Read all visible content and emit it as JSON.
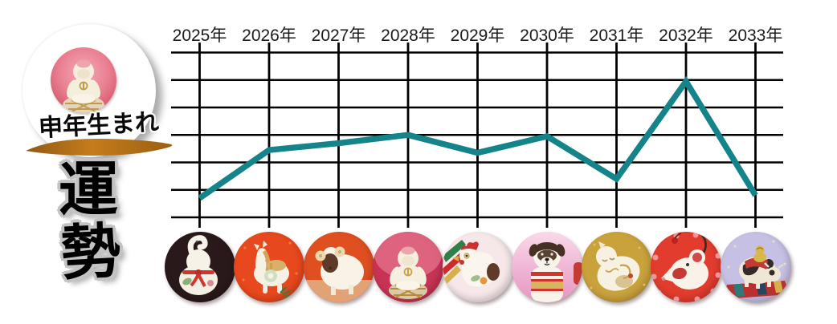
{
  "logo": {
    "badge_text": "申年生まれ",
    "title_chars": [
      "運",
      "勢"
    ],
    "brush_stroke_color": "#b06c12",
    "photo_subject": "white-monkey-figurine-on-pink"
  },
  "chart_data": {
    "type": "line",
    "title": "運勢",
    "categories": [
      "2025年",
      "2026年",
      "2027年",
      "2028年",
      "2029年",
      "2030年",
      "2031年",
      "2032年",
      "2033年"
    ],
    "series": [
      {
        "name": "運勢",
        "values": [
          0.7,
          2.45,
          2.7,
          3.0,
          2.35,
          2.95,
          1.4,
          4.95,
          0.8
        ]
      }
    ],
    "ylim": [
      0,
      6
    ],
    "grid": true,
    "grid_rows": 6,
    "grid_color": "#000000",
    "line_color": "#15838a",
    "label_color": "#1c1c1c",
    "legend": "none"
  },
  "zodiac": [
    {
      "year": "2025年",
      "animal": "snake",
      "bg": "#2a191b"
    },
    {
      "year": "2026年",
      "animal": "horse",
      "bg": "#e8481d"
    },
    {
      "year": "2027年",
      "animal": "sheep",
      "bg": "#e04f20"
    },
    {
      "year": "2028年",
      "animal": "monkey",
      "bg": "#c73355"
    },
    {
      "year": "2029年",
      "animal": "rooster",
      "bg": "#f6e7e9"
    },
    {
      "year": "2030年",
      "animal": "dog",
      "bg": "#eeb2d5"
    },
    {
      "year": "2031年",
      "animal": "boar",
      "bg": "#c9a23c"
    },
    {
      "year": "2032年",
      "animal": "rat",
      "bg": "#e23c2e"
    },
    {
      "year": "2033年",
      "animal": "ox",
      "bg": "#c6c0e4"
    }
  ]
}
